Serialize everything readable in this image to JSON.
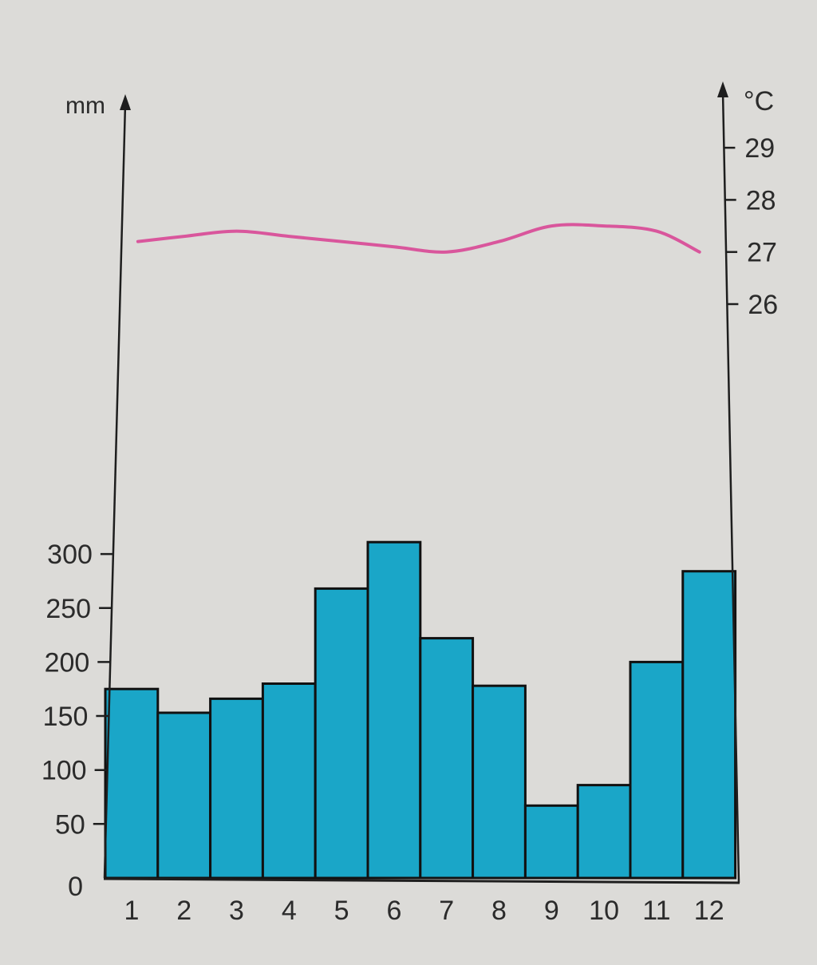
{
  "chart_data": {
    "type": "bar",
    "categories": [
      "1",
      "2",
      "3",
      "4",
      "5",
      "6",
      "7",
      "8",
      "9",
      "10",
      "11",
      "12"
    ],
    "series": [
      {
        "kind": "bar",
        "axis": "left",
        "values": [
          175,
          153,
          166,
          180,
          268,
          311,
          222,
          178,
          67,
          86,
          200,
          284
        ]
      },
      {
        "kind": "line",
        "axis": "right",
        "values": [
          27.2,
          27.3,
          27.4,
          27.3,
          27.2,
          27.1,
          27.0,
          27.2,
          27.5,
          27.5,
          27.4,
          27.0
        ]
      }
    ],
    "y_left": {
      "unit": "mm",
      "ticks": [
        0,
        50,
        100,
        150,
        200,
        250,
        300
      ],
      "lim": [
        0,
        300
      ]
    },
    "y_right": {
      "unit": "°C",
      "ticks": [
        26,
        27,
        28,
        29
      ],
      "lim": [
        26,
        29
      ]
    },
    "colors": {
      "bar": "#1aa6c8",
      "line": "#d9569c",
      "axis": "#1e1e1e"
    }
  }
}
